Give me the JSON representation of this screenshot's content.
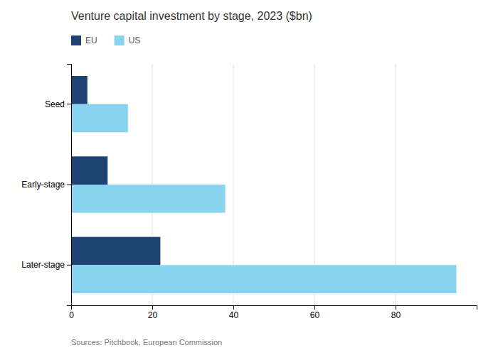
{
  "chart_data": {
    "type": "bar",
    "orientation": "horizontal",
    "title": "Venture capital investment by stage, 2023 ($bn)",
    "categories": [
      "Later-stage",
      "Early-stage",
      "Seed"
    ],
    "series": [
      {
        "name": "EU",
        "color": "#1e4272",
        "values": [
          22,
          9,
          4
        ]
      },
      {
        "name": "US",
        "color": "#87d3f0",
        "values": [
          95,
          38,
          14
        ]
      }
    ],
    "xlim": [
      0,
      100
    ],
    "xticks": [
      0,
      20,
      40,
      60,
      80
    ],
    "grid": true,
    "legend": "top",
    "annotations": [
      "Sources: Pitchbook, European Commission"
    ]
  }
}
